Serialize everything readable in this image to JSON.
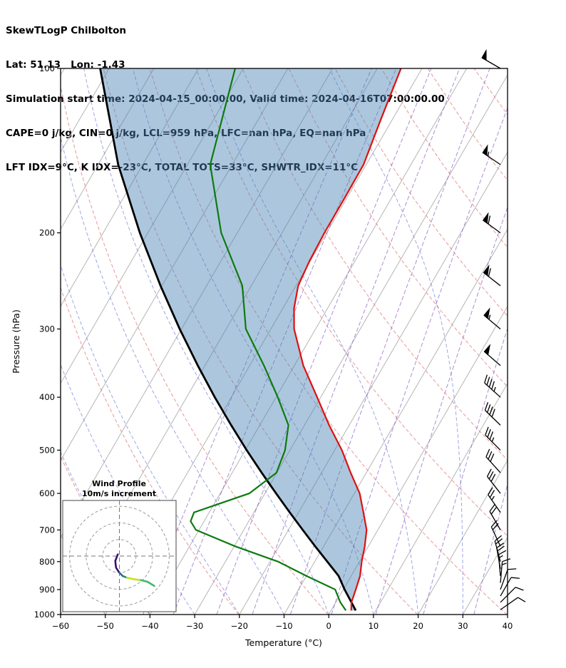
{
  "header": {
    "title": "SkewTLogP Chilbolton",
    "latlon": "Lat: 51.13   Lon: -1.43",
    "times": "Simulation start time: 2024-04-15_00:00:00, Valid time: 2024-04-16T07:00:00.00",
    "indices1": "CAPE=0 j/kg, CIN=0 j/kg, LCL=959 hPa, LFC=nan hPa, EQ=nan hPa",
    "indices2": "LFT IDX=9°C, K IDX=-23°C, TOTAL TOTS=33°C, SHWTR_IDX=11°C"
  },
  "axes": {
    "xlabel": "Temperature (°C)",
    "ylabel": "Pressure (hPa)",
    "x_ticks": [
      -60,
      -50,
      -40,
      -30,
      -20,
      -10,
      0,
      10,
      20,
      30,
      40
    ],
    "y_ticks": [
      100,
      200,
      300,
      400,
      500,
      600,
      700,
      800,
      900,
      1000
    ],
    "xlim": [
      -60,
      40
    ],
    "pressure_lim": [
      100,
      1000
    ]
  },
  "chart_data": {
    "type": "line",
    "subtype": "skewT_logP_sounding",
    "title": "SkewTLogP Chilbolton",
    "xlabel": "Temperature (°C)",
    "ylabel": "Pressure (hPa)",
    "xlim": [
      -60,
      40
    ],
    "pressure_range_hPa": [
      100,
      1000
    ],
    "grid": "skewed isotherms, dry adiabats, moist adiabats, mixing-ratio lines",
    "colors": {
      "temperature": "#e01010",
      "dewpoint": "#0e7a0e",
      "parcel": "#000000",
      "shade": "rgba(70,130,180,0.45)",
      "isotherm": "#b5b5b5",
      "dry_adiabat": "#e08080",
      "moist_adiabat": "#4a5fd0",
      "mixing_ratio": "#8b5fbf",
      "barb": "#000000",
      "frame": "#000000"
    },
    "series": [
      {
        "name": "temperature",
        "units": [
          "hPa",
          "C"
        ],
        "points": [
          [
            983,
            4.5
          ],
          [
            950,
            3.5
          ],
          [
            900,
            2.8
          ],
          [
            850,
            2.0
          ],
          [
            800,
            0.5
          ],
          [
            750,
            -0.8
          ],
          [
            700,
            -2.5
          ],
          [
            650,
            -5.5
          ],
          [
            600,
            -8.8
          ],
          [
            550,
            -13.5
          ],
          [
            500,
            -18.4
          ],
          [
            450,
            -24.5
          ],
          [
            400,
            -30.8
          ],
          [
            350,
            -38.0
          ],
          [
            300,
            -44.8
          ],
          [
            275,
            -47.5
          ],
          [
            250,
            -49.5
          ],
          [
            225,
            -50.2
          ],
          [
            200,
            -50.5
          ],
          [
            175,
            -50.5
          ],
          [
            150,
            -50.6
          ],
          [
            125,
            -52.5
          ],
          [
            100,
            -54.7
          ]
        ]
      },
      {
        "name": "dewpoint",
        "units": [
          "hPa",
          "C"
        ],
        "points": [
          [
            983,
            3.3
          ],
          [
            950,
            1.0
          ],
          [
            900,
            -1.8
          ],
          [
            850,
            -10.0
          ],
          [
            800,
            -18.2
          ],
          [
            750,
            -29.8
          ],
          [
            700,
            -40.7
          ],
          [
            675,
            -43.0
          ],
          [
            650,
            -43.4
          ],
          [
            625,
            -38.5
          ],
          [
            600,
            -33.5
          ],
          [
            550,
            -30.1
          ],
          [
            500,
            -31.1
          ],
          [
            450,
            -33.6
          ],
          [
            400,
            -39.6
          ],
          [
            350,
            -46.8
          ],
          [
            300,
            -55.6
          ],
          [
            250,
            -62.0
          ],
          [
            200,
            -73.6
          ],
          [
            150,
            -84.9
          ],
          [
            100,
            -91.8
          ]
        ]
      },
      {
        "name": "parcel_dry_adiabat",
        "units": [
          "hPa",
          "C"
        ],
        "points": [
          [
            983,
            5.5
          ],
          [
            950,
            3.5
          ],
          [
            900,
            0.3
          ],
          [
            850,
            -2.8
          ],
          [
            800,
            -7.2
          ],
          [
            750,
            -11.9
          ],
          [
            700,
            -16.8
          ],
          [
            650,
            -22.0
          ],
          [
            600,
            -27.5
          ],
          [
            550,
            -33.4
          ],
          [
            500,
            -39.7
          ],
          [
            450,
            -46.4
          ],
          [
            400,
            -53.7
          ],
          [
            350,
            -61.6
          ],
          [
            300,
            -70.4
          ],
          [
            250,
            -80.3
          ],
          [
            200,
            -91.8
          ],
          [
            150,
            -105.5
          ],
          [
            100,
            -122.0
          ]
        ]
      }
    ],
    "shaded_area": {
      "between": [
        "parcel_dry_adiabat",
        "temperature"
      ],
      "color": "rgba(70,130,180,0.45)"
    },
    "background_lines": {
      "isotherm_C": [
        -130,
        -120,
        -110,
        -100,
        -90,
        -80,
        -70,
        -60,
        -50,
        -40,
        -30,
        -20,
        -10,
        0,
        10,
        20,
        30,
        40
      ],
      "dry_adiabat_theta_K": [
        233,
        253,
        273,
        293,
        313,
        333,
        353,
        373,
        393,
        413,
        433,
        453
      ],
      "moist_adiabat_T0_C": [
        -60,
        -50,
        -40,
        -30,
        -20,
        -10,
        0,
        10,
        20,
        30,
        40,
        50,
        60
      ],
      "mixing_ratio_g_kg": [
        0.1,
        0.2,
        0.5,
        1,
        2,
        4,
        8,
        16,
        32
      ]
    },
    "wind_barbs": {
      "units": [
        "hPa",
        "kt",
        "deg_from"
      ],
      "levels": [
        [
          980,
          8,
          55
        ],
        [
          950,
          10,
          45
        ],
        [
          925,
          12,
          30
        ],
        [
          900,
          12,
          20
        ],
        [
          875,
          15,
          5
        ],
        [
          850,
          15,
          355
        ],
        [
          825,
          18,
          350
        ],
        [
          800,
          18,
          345
        ],
        [
          750,
          20,
          335
        ],
        [
          700,
          22,
          330
        ],
        [
          650,
          25,
          325
        ],
        [
          600,
          28,
          322
        ],
        [
          550,
          32,
          318
        ],
        [
          500,
          35,
          315
        ],
        [
          450,
          40,
          314
        ],
        [
          400,
          45,
          312
        ],
        [
          350,
          50,
          311
        ],
        [
          300,
          55,
          310
        ],
        [
          250,
          60,
          308
        ],
        [
          200,
          60,
          306
        ],
        [
          150,
          55,
          304
        ],
        [
          100,
          50,
          300
        ]
      ]
    },
    "hodograph": {
      "title": "Wind Profile",
      "subtitle": "10m/s increment",
      "ring_interval_ms": 10,
      "rings_ms": [
        10,
        20,
        30
      ],
      "segments": [
        {
          "color": "#3b1076",
          "points": [
            [
              -1,
              1
            ],
            [
              -2.5,
              -3
            ],
            [
              -2,
              -7
            ],
            [
              0,
              -10
            ]
          ]
        },
        {
          "color": "#33638d",
          "points": [
            [
              0,
              -10
            ],
            [
              2,
              -12
            ]
          ]
        },
        {
          "color": "#28828f",
          "points": [
            [
              2,
              -12
            ],
            [
              4.5,
              -13
            ]
          ]
        },
        {
          "color": "#c7e020",
          "points": [
            [
              4.5,
              -13
            ],
            [
              9,
              -14
            ],
            [
              13,
              -14.5
            ]
          ]
        },
        {
          "color": "#3fb871",
          "points": [
            [
              13,
              -14.5
            ],
            [
              17,
              -15.5
            ],
            [
              21,
              -18
            ]
          ]
        }
      ]
    }
  }
}
